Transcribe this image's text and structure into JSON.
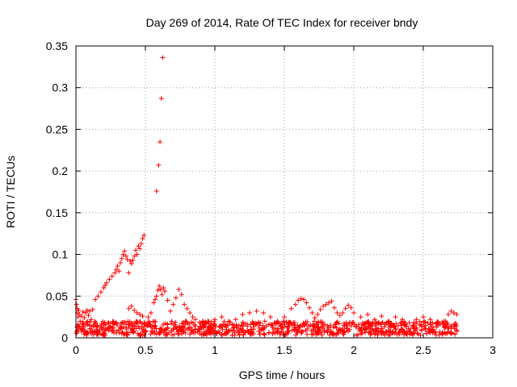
{
  "chart_data": {
    "type": "scatter",
    "title": "Day 269 of 2014, Rate Of TEC Index for receiver bndy",
    "xlabel": "GPS time / hours",
    "ylabel": "ROTI / TECUs",
    "xlim": [
      0,
      3
    ],
    "ylim": [
      0,
      0.35
    ],
    "xticks": [
      0,
      0.5,
      1,
      1.5,
      2,
      2.5,
      3
    ],
    "xtick_labels": [
      "0",
      "0.5",
      "1",
      "1.5",
      "2",
      "2.5",
      "3"
    ],
    "yticks": [
      0,
      0.05,
      0.1,
      0.15,
      0.2,
      0.25,
      0.3,
      0.35
    ],
    "ytick_labels": [
      "0",
      "0.05",
      "0.1",
      "0.15",
      "0.2",
      "0.25",
      "0.3",
      "0.35"
    ],
    "grid": true,
    "marker": "+",
    "color": "#ff0000",
    "series": [
      {
        "name": "ROTI",
        "points": [
          [
            0.0,
            0.046
          ],
          [
            0.005,
            0.04
          ],
          [
            0.01,
            0.035
          ],
          [
            0.01,
            0.03
          ],
          [
            0.015,
            0.025
          ],
          [
            0.02,
            0.033
          ],
          [
            0.025,
            0.028
          ],
          [
            0.03,
            0.02
          ],
          [
            0.04,
            0.026
          ],
          [
            0.05,
            0.031
          ],
          [
            0.06,
            0.024
          ],
          [
            0.07,
            0.03
          ],
          [
            0.08,
            0.033
          ],
          [
            0.09,
            0.027
          ],
          [
            0.1,
            0.032
          ],
          [
            0.11,
            0.022
          ],
          [
            0.12,
            0.034
          ],
          [
            0.14,
            0.046
          ],
          [
            0.16,
            0.05
          ],
          [
            0.18,
            0.055
          ],
          [
            0.2,
            0.06
          ],
          [
            0.21,
            0.063
          ],
          [
            0.22,
            0.066
          ],
          [
            0.24,
            0.07
          ],
          [
            0.26,
            0.074
          ],
          [
            0.28,
            0.078
          ],
          [
            0.29,
            0.082
          ],
          [
            0.3,
            0.086
          ],
          [
            0.31,
            0.08
          ],
          [
            0.32,
            0.09
          ],
          [
            0.33,
            0.095
          ],
          [
            0.34,
            0.1
          ],
          [
            0.35,
            0.104
          ],
          [
            0.36,
            0.098
          ],
          [
            0.37,
            0.094
          ],
          [
            0.38,
            0.078
          ],
          [
            0.39,
            0.092
          ],
          [
            0.4,
            0.089
          ],
          [
            0.41,
            0.093
          ],
          [
            0.42,
            0.098
          ],
          [
            0.43,
            0.105
          ],
          [
            0.44,
            0.1
          ],
          [
            0.45,
            0.11
          ],
          [
            0.46,
            0.107
          ],
          [
            0.47,
            0.113
          ],
          [
            0.48,
            0.119
          ],
          [
            0.49,
            0.123
          ],
          [
            0.38,
            0.035
          ],
          [
            0.4,
            0.038
          ],
          [
            0.42,
            0.033
          ],
          [
            0.44,
            0.03
          ],
          [
            0.46,
            0.028
          ],
          [
            0.48,
            0.026
          ],
          [
            0.52,
            0.025
          ],
          [
            0.54,
            0.03
          ],
          [
            0.56,
            0.042
          ],
          [
            0.57,
            0.046
          ],
          [
            0.58,
            0.05
          ],
          [
            0.59,
            0.057
          ],
          [
            0.6,
            0.062
          ],
          [
            0.61,
            0.058
          ],
          [
            0.62,
            0.052
          ],
          [
            0.63,
            0.06
          ],
          [
            0.64,
            0.056
          ],
          [
            0.58,
            0.176
          ],
          [
            0.595,
            0.207
          ],
          [
            0.605,
            0.235
          ],
          [
            0.615,
            0.287
          ],
          [
            0.625,
            0.336
          ],
          [
            0.66,
            0.045
          ],
          [
            0.68,
            0.032
          ],
          [
            0.7,
            0.04
          ],
          [
            0.72,
            0.048
          ],
          [
            0.74,
            0.058
          ],
          [
            0.76,
            0.052
          ],
          [
            0.78,
            0.04
          ],
          [
            0.8,
            0.035
          ],
          [
            0.82,
            0.03
          ],
          [
            0.84,
            0.025
          ],
          [
            0.86,
            0.022
          ],
          [
            0.9,
            0.018
          ],
          [
            0.95,
            0.02
          ],
          [
            1.0,
            0.022
          ],
          [
            1.05,
            0.025
          ],
          [
            1.1,
            0.02
          ],
          [
            1.15,
            0.022
          ],
          [
            1.2,
            0.028
          ],
          [
            1.25,
            0.03
          ],
          [
            1.3,
            0.032
          ],
          [
            1.35,
            0.03
          ],
          [
            1.4,
            0.025
          ],
          [
            1.45,
            0.02
          ],
          [
            1.5,
            0.025
          ],
          [
            1.55,
            0.035
          ],
          [
            1.58,
            0.04
          ],
          [
            1.6,
            0.045
          ],
          [
            1.62,
            0.047
          ],
          [
            1.64,
            0.046
          ],
          [
            1.66,
            0.042
          ],
          [
            1.68,
            0.036
          ],
          [
            1.7,
            0.03
          ],
          [
            1.72,
            0.024
          ],
          [
            1.74,
            0.028
          ],
          [
            1.76,
            0.034
          ],
          [
            1.78,
            0.038
          ],
          [
            1.8,
            0.04
          ],
          [
            1.82,
            0.042
          ],
          [
            1.84,
            0.044
          ],
          [
            1.86,
            0.036
          ],
          [
            1.88,
            0.03
          ],
          [
            1.9,
            0.027
          ],
          [
            1.92,
            0.03
          ],
          [
            1.94,
            0.035
          ],
          [
            1.96,
            0.039
          ],
          [
            1.98,
            0.036
          ],
          [
            2.0,
            0.03
          ],
          [
            2.05,
            0.025
          ],
          [
            2.1,
            0.028
          ],
          [
            2.15,
            0.022
          ],
          [
            2.2,
            0.026
          ],
          [
            2.25,
            0.02
          ],
          [
            2.3,
            0.025
          ],
          [
            2.35,
            0.022
          ],
          [
            2.4,
            0.018
          ],
          [
            2.45,
            0.022
          ],
          [
            2.5,
            0.025
          ],
          [
            2.55,
            0.022
          ],
          [
            2.6,
            0.018
          ],
          [
            2.65,
            0.02
          ],
          [
            2.68,
            0.028
          ],
          [
            2.7,
            0.032
          ],
          [
            2.72,
            0.03
          ],
          [
            2.74,
            0.028
          ]
        ]
      }
    ]
  }
}
